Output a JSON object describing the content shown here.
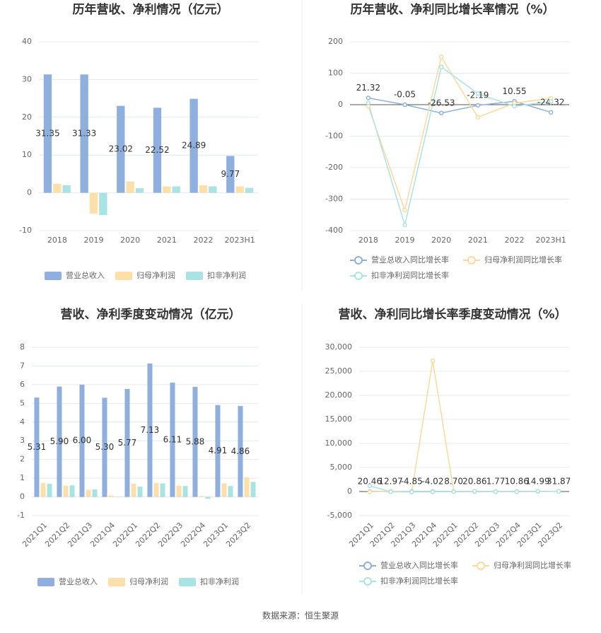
{
  "chart_data": [
    {
      "type": "bar",
      "title": "历年营收、净利情况（亿元）",
      "categories": [
        "2018",
        "2019",
        "2020",
        "2021",
        "2022",
        "2023H1"
      ],
      "series": [
        {
          "name": "营业总收入",
          "color": "#8fb0de",
          "values": [
            31.35,
            31.33,
            23.02,
            22.52,
            24.89,
            9.77
          ],
          "value_labels": [
            "31.35",
            "31.33",
            "23.02",
            "22.52",
            "24.89",
            "9.77"
          ]
        },
        {
          "name": "归母净利润",
          "color": "#fde0a8",
          "values": [
            2.4,
            -5.5,
            3.0,
            1.7,
            2.0,
            1.7
          ]
        },
        {
          "name": "扣非净利润",
          "color": "#a9e3e3",
          "values": [
            2.0,
            -5.9,
            1.2,
            1.7,
            1.7,
            1.3
          ]
        }
      ],
      "ylim": [
        -10,
        40
      ],
      "yticks": [
        -10,
        0,
        10,
        20,
        30,
        40
      ],
      "grid": true
    },
    {
      "type": "line",
      "title": "历年营收、净利同比增长率情况（%）",
      "categories": [
        "2018",
        "2019",
        "2020",
        "2021",
        "2022",
        "2023H1"
      ],
      "series": [
        {
          "name": "营业总收入同比增长率",
          "color": "#8fb0de",
          "values": [
            21.32,
            -0.05,
            -26.53,
            -2.19,
            10.55,
            -24.32
          ],
          "value_labels": [
            "21.32",
            "-0.05",
            "-26.53",
            "-2.19",
            "10.55",
            "-24.32"
          ]
        },
        {
          "name": "归母净利润同比增长率",
          "color": "#fdd99b",
          "values": [
            -5,
            -335,
            152,
            -40,
            5,
            20
          ]
        },
        {
          "name": "扣非净利润同比增长率",
          "color": "#a9e3e3",
          "values": [
            5,
            -382,
            120,
            35,
            -5,
            10
          ]
        }
      ],
      "ylim": [
        -400,
        200
      ],
      "yticks": [
        -400,
        -300,
        -200,
        -100,
        0,
        100,
        200
      ],
      "grid": true
    },
    {
      "type": "bar",
      "title": "营收、净利季度变动情况（亿元）",
      "categories": [
        "2021Q1",
        "2021Q2",
        "2021Q3",
        "2021Q4",
        "2022Q1",
        "2022Q2",
        "2022Q3",
        "2022Q4",
        "2023Q1",
        "2023Q2"
      ],
      "series": [
        {
          "name": "营业总收入",
          "color": "#8fb0de",
          "values": [
            5.31,
            5.9,
            6.0,
            5.3,
            5.77,
            7.13,
            6.11,
            5.88,
            4.91,
            4.86
          ],
          "value_labels": [
            "5.31",
            "5.90",
            "6.00",
            "5.30",
            "5.77",
            "7.13",
            "6.11",
            "5.88",
            "4.91",
            "4.86"
          ]
        },
        {
          "name": "归母净利润",
          "color": "#fde0a8",
          "values": [
            0.75,
            0.6,
            0.38,
            0.08,
            0.7,
            0.75,
            0.6,
            0.05,
            0.72,
            1.05
          ]
        },
        {
          "name": "扣非净利润",
          "color": "#a9e3e3",
          "values": [
            0.7,
            0.62,
            0.4,
            0.02,
            0.55,
            0.72,
            0.58,
            -0.1,
            0.58,
            0.8
          ]
        }
      ],
      "ylim": [
        -1,
        8
      ],
      "yticks": [
        -1,
        0,
        1,
        2,
        3,
        4,
        5,
        6,
        7,
        8
      ],
      "grid": true
    },
    {
      "type": "line",
      "title": "营收、净利同比增长率季度变动情况（%）",
      "categories": [
        "2021Q1",
        "2021Q2",
        "2021Q3",
        "2021Q4",
        "2022Q1",
        "2022Q2",
        "2022Q3",
        "2022Q4",
        "2023Q1",
        "2023Q2"
      ],
      "series": [
        {
          "name": "营业总收入同比增长率",
          "color": "#8fb0de",
          "values": [
            20.46,
            12.97,
            -4.85,
            -4.02,
            8.7,
            20.86,
            1.77,
            10.86,
            14.99,
            31.87
          ],
          "value_labels": [
            "20.46",
            "12.97",
            "-4.85",
            "-4.02",
            "8.70",
            "20.86",
            "1.77",
            "10.86",
            "14.99",
            "31.87"
          ]
        },
        {
          "name": "归母净利润同比增长率",
          "color": "#fdd99b",
          "values": [
            -50,
            100,
            -80,
            27200,
            50,
            -30,
            40,
            20,
            60,
            40
          ]
        },
        {
          "name": "扣非净利润同比增长率",
          "color": "#a9e3e3",
          "values": [
            1200,
            -50,
            -100,
            -60,
            -20,
            30,
            -10,
            -40,
            50,
            30
          ]
        }
      ],
      "ylim": [
        -5000,
        30000
      ],
      "yticks": [
        {
          "value": -5000,
          "label": "-5,000"
        },
        0,
        {
          "value": 5000,
          "label": "5,000"
        },
        {
          "value": 10000,
          "label": "10,000"
        },
        {
          "value": 15000,
          "label": "15,000"
        },
        {
          "value": 20000,
          "label": "20,000"
        },
        {
          "value": 25000,
          "label": "25,000"
        },
        {
          "value": 30000,
          "label": "30,000"
        }
      ],
      "grid": true
    }
  ],
  "source": "数据来源：恒生聚源"
}
